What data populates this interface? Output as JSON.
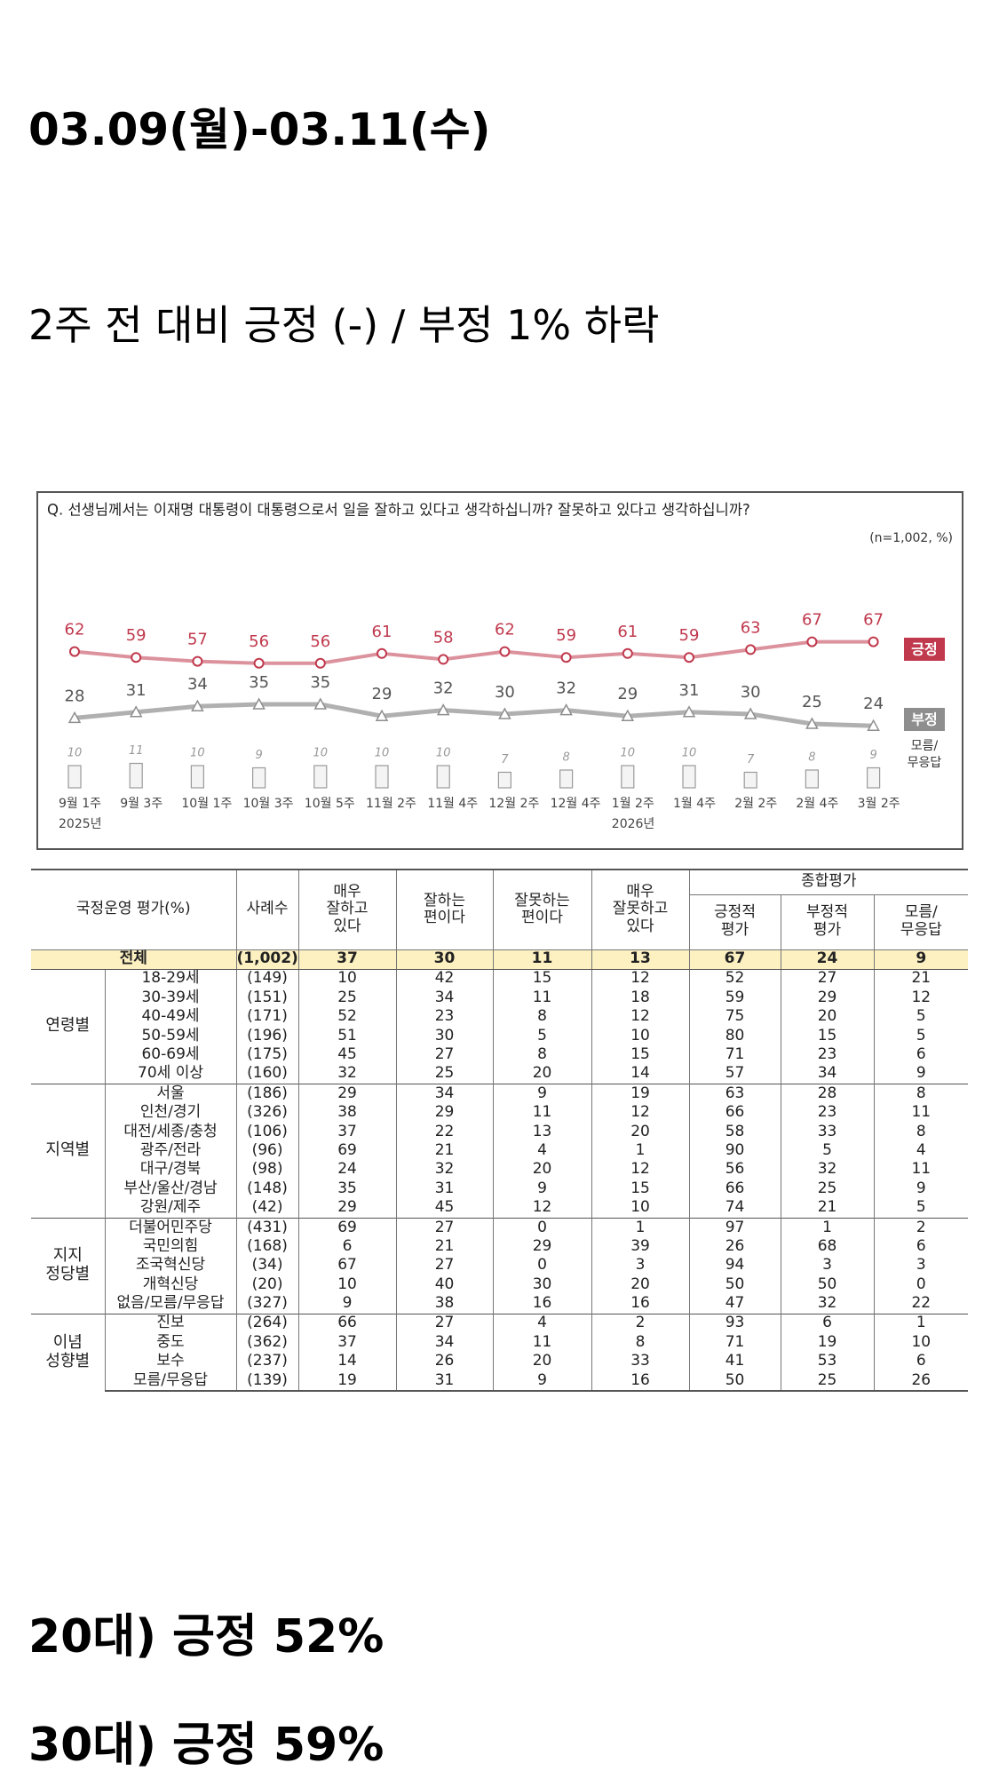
{
  "header": {
    "date": "03.09(월)-03.11(수)",
    "summary": "2주 전 대비 긍정 (-) / 부정 1% 하락"
  },
  "chart_data": {
    "type": "line",
    "title": "Q. 선생님께서는 이재명 대통령이 대통령으로서 일을 잘하고 있다고 생각하십니까? 잘못하고 있다고 생각하십니까?",
    "subtitle": "(n=1,002, %)",
    "categories": [
      "9월 1주",
      "9월 3주",
      "10월 1주",
      "10월 3주",
      "10월 5주",
      "11월 2주",
      "11월 4주",
      "12월 2주",
      "12월 4주",
      "1월 2주",
      "1월 4주",
      "2월 2주",
      "2월 4주",
      "3월 2주"
    ],
    "category_sublabels": [
      "2025년",
      null,
      null,
      null,
      null,
      null,
      null,
      null,
      null,
      "2026년",
      null,
      null,
      null,
      null
    ],
    "series": [
      {
        "name": "긍정",
        "color": "#c0394d",
        "mark": "line",
        "marker": "circle",
        "values": [
          62,
          59,
          57,
          56,
          56,
          61,
          58,
          62,
          59,
          61,
          59,
          63,
          67,
          67
        ]
      },
      {
        "name": "부정",
        "color": "#8e8e8e",
        "mark": "line",
        "marker": "triangle",
        "values": [
          28,
          31,
          34,
          35,
          35,
          29,
          32,
          30,
          32,
          29,
          31,
          30,
          25,
          24
        ]
      },
      {
        "name": "모름/\n무응답",
        "color": "#9a9a9a",
        "mark": "bar",
        "values": [
          10,
          11,
          10,
          9,
          10,
          10,
          10,
          7,
          8,
          10,
          10,
          7,
          8,
          9
        ]
      }
    ],
    "grid": false
  },
  "table": {
    "corner": "국정운영 평가(%)",
    "n_header": "사례수",
    "headers": [
      "매우\n잘하고\n있다",
      "잘하는\n편이다",
      "잘못하는\n편이다",
      "매우\n잘못하고\n있다"
    ],
    "summary_header": "종합평가",
    "summary_subheaders": [
      "긍정적\n평가",
      "부정적\n평가",
      "모름/\n무응답"
    ],
    "total": {
      "label": "전체",
      "n": "(1,002)",
      "values": [
        37,
        30,
        11,
        13,
        67,
        24,
        9
      ]
    },
    "groups": [
      {
        "label": "연령별",
        "rows": [
          {
            "label": "18-29세",
            "n": "(149)",
            "values": [
              10,
              42,
              15,
              12,
              52,
              27,
              21
            ]
          },
          {
            "label": "30-39세",
            "n": "(151)",
            "values": [
              25,
              34,
              11,
              18,
              59,
              29,
              12
            ]
          },
          {
            "label": "40-49세",
            "n": "(171)",
            "values": [
              52,
              23,
              8,
              12,
              75,
              20,
              5
            ]
          },
          {
            "label": "50-59세",
            "n": "(196)",
            "values": [
              51,
              30,
              5,
              10,
              80,
              15,
              5
            ]
          },
          {
            "label": "60-69세",
            "n": "(175)",
            "values": [
              45,
              27,
              8,
              15,
              71,
              23,
              6
            ]
          },
          {
            "label": "70세 이상",
            "n": "(160)",
            "values": [
              32,
              25,
              20,
              14,
              57,
              34,
              9
            ]
          }
        ]
      },
      {
        "label": "지역별",
        "rows": [
          {
            "label": "서울",
            "n": "(186)",
            "values": [
              29,
              34,
              9,
              19,
              63,
              28,
              8
            ]
          },
          {
            "label": "인천/경기",
            "n": "(326)",
            "values": [
              38,
              29,
              11,
              12,
              66,
              23,
              11
            ]
          },
          {
            "label": "대전/세종/충청",
            "n": "(106)",
            "values": [
              37,
              22,
              13,
              20,
              58,
              33,
              8
            ]
          },
          {
            "label": "광주/전라",
            "n": "(96)",
            "values": [
              69,
              21,
              4,
              1,
              90,
              5,
              4
            ]
          },
          {
            "label": "대구/경북",
            "n": "(98)",
            "values": [
              24,
              32,
              20,
              12,
              56,
              32,
              11
            ]
          },
          {
            "label": "부산/울산/경남",
            "n": "(148)",
            "values": [
              35,
              31,
              9,
              15,
              66,
              25,
              9
            ]
          },
          {
            "label": "강원/제주",
            "n": "(42)",
            "values": [
              29,
              45,
              12,
              10,
              74,
              21,
              5
            ]
          }
        ]
      },
      {
        "label": "지지\n정당별",
        "rows": [
          {
            "label": "더불어민주당",
            "n": "(431)",
            "values": [
              69,
              27,
              0,
              1,
              97,
              1,
              2
            ]
          },
          {
            "label": "국민의힘",
            "n": "(168)",
            "values": [
              6,
              21,
              29,
              39,
              26,
              68,
              6
            ]
          },
          {
            "label": "조국혁신당",
            "n": "(34)",
            "values": [
              67,
              27,
              0,
              3,
              94,
              3,
              3
            ]
          },
          {
            "label": "개혁신당",
            "n": "(20)",
            "values": [
              10,
              40,
              30,
              20,
              50,
              50,
              0
            ]
          },
          {
            "label": "없음/모름/무응답",
            "n": "(327)",
            "values": [
              9,
              38,
              16,
              16,
              47,
              32,
              22
            ]
          }
        ]
      },
      {
        "label": "이념\n성향별",
        "rows": [
          {
            "label": "진보",
            "n": "(264)",
            "values": [
              66,
              27,
              4,
              2,
              93,
              6,
              1
            ]
          },
          {
            "label": "중도",
            "n": "(362)",
            "values": [
              37,
              34,
              11,
              8,
              71,
              19,
              10
            ]
          },
          {
            "label": "보수",
            "n": "(237)",
            "values": [
              14,
              26,
              20,
              33,
              41,
              53,
              6
            ]
          },
          {
            "label": "모름/무응답",
            "n": "(139)",
            "values": [
              19,
              31,
              9,
              16,
              50,
              25,
              26
            ]
          }
        ]
      }
    ]
  },
  "footer_lines": [
    "20대) 긍정 52%",
    "30대) 긍정 59%"
  ]
}
